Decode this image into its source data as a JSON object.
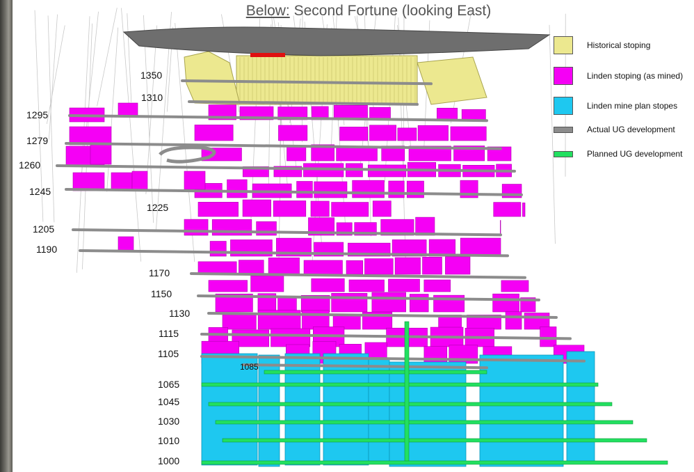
{
  "title": {
    "prefix": "Below:",
    "text": "Second Fortune (looking East)"
  },
  "colors": {
    "historical": "#ece88f",
    "linden_mined": "#f500f5",
    "plan_stopes": "#1ec8f0",
    "actual_dev": "#8c8c8c",
    "planned_dev": "#22e060",
    "surface": "#6e6e6e"
  },
  "legend": [
    {
      "key": "historical",
      "label": "Historical stoping"
    },
    {
      "key": "linden_mined",
      "label": "Linden stoping (as mined)"
    },
    {
      "key": "plan_stopes",
      "label": "Linden mine plan stopes"
    },
    {
      "key": "actual_dev",
      "label": "Actual UG development"
    },
    {
      "key": "planned_dev",
      "label": "Planned UG development"
    }
  ],
  "levels": [
    "1350",
    "1310",
    "1295",
    "1279",
    "1260",
    "1245",
    "1225",
    "1205",
    "1190",
    "1170",
    "1150",
    "1130",
    "1115",
    "1105",
    "1085",
    "1065",
    "1045",
    "1030",
    "1010",
    "1000"
  ]
}
